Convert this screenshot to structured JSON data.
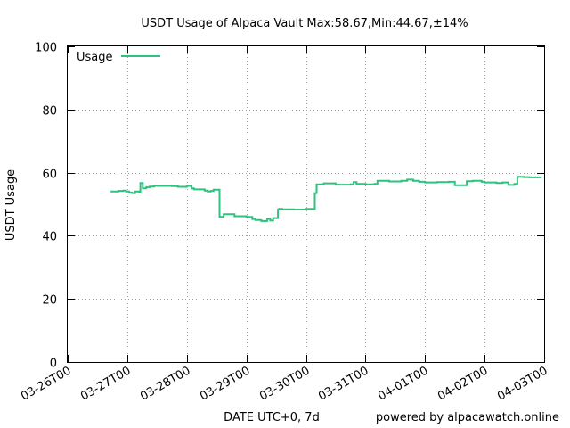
{
  "chart_data": {
    "type": "line",
    "title": "USDT Usage of Alpaca Vault Max:58.67,Min:44.67,±14%",
    "xlabel": "DATE UTC+0, 7d",
    "ylabel": "USDT Usage",
    "credit": "powered by alpacawatch.online",
    "ylim": [
      0,
      100
    ],
    "yticks": [
      0,
      20,
      40,
      60,
      80,
      100
    ],
    "xlim": [
      "03-26T00",
      "04-03T00"
    ],
    "xticks": [
      "03-26T00",
      "03-27T00",
      "03-28T00",
      "03-29T00",
      "03-30T00",
      "03-31T00",
      "04-01T00",
      "04-02T00",
      "04-03T00"
    ],
    "grid": true,
    "legend_position": "top-left",
    "series": [
      {
        "name": "Usage",
        "color": "#2ec27e",
        "x_days": [
          0.72,
          0.85,
          0.93,
          0.98,
          1.03,
          1.08,
          1.13,
          1.2,
          1.22,
          1.26,
          1.32,
          1.38,
          1.45,
          1.6,
          1.75,
          1.85,
          2.0,
          2.08,
          2.12,
          2.3,
          2.35,
          2.4,
          2.45,
          2.55,
          2.6,
          2.62,
          2.8,
          2.85,
          3.0,
          3.1,
          3.15,
          3.25,
          3.35,
          3.4,
          3.45,
          3.53,
          3.55,
          3.6,
          3.8,
          4.0,
          4.12,
          4.15,
          4.18,
          4.3,
          4.5,
          4.75,
          4.8,
          4.85,
          5.0,
          5.15,
          5.2,
          5.4,
          5.6,
          5.7,
          5.8,
          5.9,
          6.0,
          6.2,
          6.4,
          6.5,
          6.7,
          6.8,
          6.95,
          7.0,
          7.2,
          7.3,
          7.4,
          7.5,
          7.55,
          7.65,
          7.75,
          7.95
        ],
        "values": [
          54.0,
          54.2,
          54.3,
          54.0,
          53.7,
          53.5,
          54.0,
          53.7,
          56.7,
          55.0,
          55.4,
          55.6,
          55.8,
          55.8,
          55.7,
          55.5,
          55.8,
          55.0,
          54.7,
          54.3,
          54.0,
          54.2,
          54.6,
          46.0,
          46.0,
          46.8,
          46.2,
          46.2,
          46.0,
          45.3,
          45.0,
          44.67,
          45.3,
          44.8,
          45.6,
          48.3,
          48.5,
          48.4,
          48.3,
          48.5,
          48.5,
          53.5,
          56.3,
          56.6,
          56.2,
          56.3,
          57.0,
          56.4,
          56.3,
          56.4,
          57.4,
          57.2,
          57.4,
          57.8,
          57.4,
          57.1,
          56.9,
          57.0,
          57.1,
          56.0,
          57.3,
          57.4,
          57.1,
          56.9,
          56.7,
          56.9,
          56.1,
          56.4,
          58.67,
          58.6,
          58.5,
          58.4
        ]
      }
    ]
  }
}
